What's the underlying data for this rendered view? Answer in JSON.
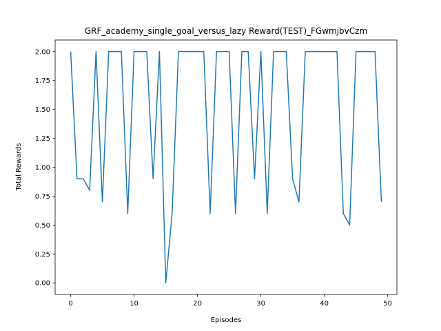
{
  "chart_data": {
    "type": "line",
    "title": "GRF_academy_single_goal_versus_lazy Reward(TEST)_FGwmjbvCzm",
    "xlabel": "Episodes",
    "ylabel": "Total Rewards",
    "xlim": [
      -2.45,
      51.45
    ],
    "ylim": [
      -0.1,
      2.1
    ],
    "xticks": [
      0,
      10,
      20,
      30,
      40,
      50
    ],
    "yticks": [
      0.0,
      0.25,
      0.5,
      0.75,
      1.0,
      1.25,
      1.5,
      1.75,
      2.0
    ],
    "xtick_labels": [
      "0",
      "10",
      "20",
      "30",
      "40",
      "50"
    ],
    "ytick_labels": [
      "0.00",
      "0.25",
      "0.50",
      "0.75",
      "1.00",
      "1.25",
      "1.50",
      "1.75",
      "2.00"
    ],
    "grid": false,
    "series": [
      {
        "color": "#1f77b4",
        "x": [
          0,
          1,
          2,
          3,
          4,
          5,
          6,
          7,
          8,
          9,
          10,
          11,
          12,
          13,
          14,
          15,
          16,
          17,
          18,
          19,
          20,
          21,
          22,
          23,
          24,
          25,
          26,
          27,
          28,
          29,
          30,
          31,
          32,
          33,
          34,
          35,
          36,
          37,
          38,
          39,
          40,
          41,
          42,
          43,
          44,
          45,
          46,
          47,
          48,
          49
        ],
        "values": [
          2.0,
          0.9,
          0.9,
          0.8,
          2.0,
          0.7,
          2.0,
          2.0,
          2.0,
          0.6,
          2.0,
          2.0,
          2.0,
          0.9,
          2.0,
          0.0,
          0.6,
          2.0,
          2.0,
          2.0,
          2.0,
          2.0,
          0.6,
          2.0,
          2.0,
          2.0,
          0.6,
          2.0,
          2.0,
          0.9,
          2.0,
          0.6,
          2.0,
          2.0,
          2.0,
          0.9,
          0.7,
          2.0,
          2.0,
          2.0,
          2.0,
          2.0,
          2.0,
          0.6,
          0.5,
          2.0,
          2.0,
          2.0,
          2.0,
          0.7
        ]
      }
    ]
  }
}
